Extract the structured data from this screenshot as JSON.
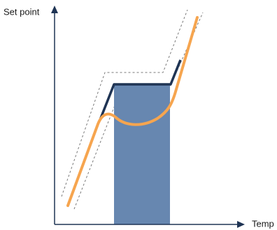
{
  "axes": {
    "y_label": "Set point",
    "x_label": "Temp"
  }
}
